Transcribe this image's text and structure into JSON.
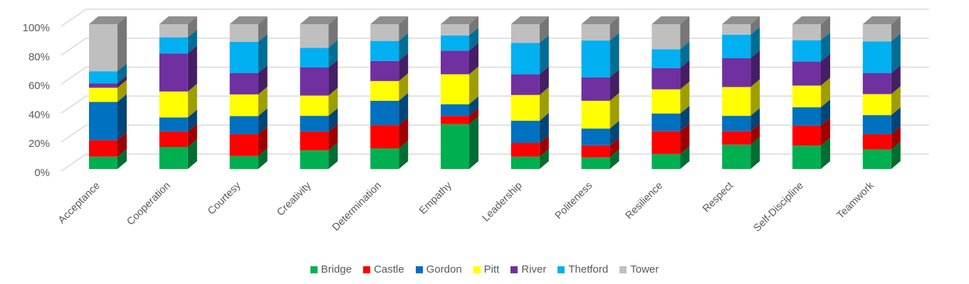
{
  "chart_data": {
    "type": "bar",
    "stacked": "percent",
    "style": "3d-column",
    "title": "",
    "xlabel": "",
    "ylabel": "",
    "ylim": [
      0,
      100
    ],
    "yticks": [
      "0%",
      "20%",
      "40%",
      "60%",
      "80%",
      "100%"
    ],
    "grid": true,
    "legend_position": "bottom",
    "categories": [
      "Acceptance",
      "Cooperation",
      "Courtesy",
      "Creativity",
      "Determination",
      "Empathy",
      "Leadership",
      "Politeness",
      "Resilience",
      "Respect",
      "Self-Discipline",
      "Teamwork"
    ],
    "series": [
      {
        "name": "Bridge",
        "color": "#00B050",
        "values": [
          8.5,
          15.2,
          9.0,
          12.9,
          14.2,
          31.0,
          8.5,
          8.0,
          10.4,
          16.8,
          16.2,
          13.5
        ]
      },
      {
        "name": "Castle",
        "color": "#FF0000",
        "values": [
          11.4,
          10.6,
          15.0,
          12.9,
          16.1,
          5.7,
          9.4,
          8.3,
          15.7,
          9.3,
          13.8,
          10.5
        ]
      },
      {
        "name": "Gordon",
        "color": "#0070C0",
        "values": [
          26.4,
          9.8,
          12.5,
          10.9,
          16.8,
          8.0,
          15.4,
          11.6,
          12.2,
          10.6,
          12.6,
          13.2
        ]
      },
      {
        "name": "Pitt",
        "color": "#FFFF00",
        "values": [
          9.8,
          17.9,
          15.0,
          14.0,
          13.6,
          20.7,
          17.8,
          19.2,
          16.7,
          19.9,
          15.0,
          14.5
        ]
      },
      {
        "name": "River",
        "color": "#7030A0",
        "values": [
          3.0,
          26.3,
          14.7,
          19.4,
          13.9,
          16.3,
          14.3,
          16.2,
          14.7,
          19.9,
          16.6,
          14.5
        ]
      },
      {
        "name": "Thetford",
        "color": "#00B0F0",
        "values": [
          8.4,
          11.1,
          21.6,
          13.6,
          13.8,
          10.5,
          21.6,
          25.4,
          13.0,
          16.2,
          14.7,
          21.9
        ]
      },
      {
        "name": "Tower",
        "color": "#BFBFBF",
        "values": [
          32.5,
          9.1,
          12.2,
          16.3,
          11.6,
          7.8,
          13.0,
          11.3,
          17.3,
          7.3,
          11.1,
          11.9
        ]
      }
    ]
  }
}
